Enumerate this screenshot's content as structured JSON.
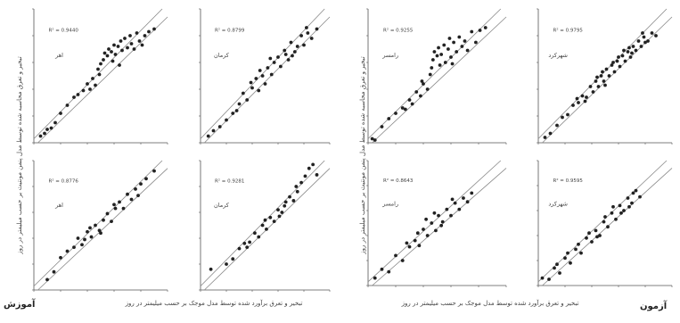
{
  "labels": {
    "train_section": "آموزش",
    "test_section": "آزمون",
    "xlabel": "تبخیر و تعرق برآورد شده توسط مدل موجک بر حسب میلیمتر در روز",
    "ylabel": "تبخیر و تعرق محاسبه شده توسط مدل پنمن مونتیث بر حسب میلیمتر در روز"
  },
  "style": {
    "point_color": "#222222",
    "line_color": "#888888",
    "axis_color": "#555555"
  },
  "chart_data": [
    {
      "type": "scatter",
      "section": "train",
      "station": "اهر",
      "r2": "R² = 0.9440",
      "xlim": [
        0,
        10
      ],
      "ylim": [
        0,
        10
      ],
      "grid": false,
      "points": [
        [
          0.5,
          0.5
        ],
        [
          0.8,
          0.7
        ],
        [
          1.0,
          1.0
        ],
        [
          1.3,
          1.1
        ],
        [
          1.6,
          1.5
        ],
        [
          2.0,
          2.2
        ],
        [
          2.5,
          2.8
        ],
        [
          3.0,
          3.4
        ],
        [
          3.3,
          3.6
        ],
        [
          3.7,
          3.9
        ],
        [
          4.0,
          4.4
        ],
        [
          4.2,
          4.0
        ],
        [
          4.4,
          4.8
        ],
        [
          4.6,
          4.3
        ],
        [
          4.8,
          5.5
        ],
        [
          5.0,
          5.9
        ],
        [
          5.2,
          6.2
        ],
        [
          5.3,
          6.7
        ],
        [
          5.5,
          6.5
        ],
        [
          5.6,
          7.0
        ],
        [
          5.8,
          6.8
        ],
        [
          6.0,
          7.3
        ],
        [
          6.1,
          6.6
        ],
        [
          6.3,
          7.2
        ],
        [
          6.5,
          7.6
        ],
        [
          6.6,
          6.9
        ],
        [
          6.8,
          7.8
        ],
        [
          7.0,
          7.1
        ],
        [
          7.2,
          8.0
        ],
        [
          7.3,
          7.4
        ],
        [
          7.5,
          7.0
        ],
        [
          7.7,
          8.2
        ],
        [
          7.9,
          7.6
        ],
        [
          8.1,
          7.3
        ],
        [
          8.3,
          8.0
        ],
        [
          8.6,
          8.3
        ],
        [
          9.0,
          8.5
        ],
        [
          6.4,
          5.8
        ],
        [
          5.9,
          6.1
        ],
        [
          4.9,
          5.1
        ]
      ]
    },
    {
      "type": "scatter",
      "section": "train",
      "station": "کرمان",
      "r2": "R² = 0.8799",
      "xlim": [
        0,
        10
      ],
      "ylim": [
        0,
        10
      ],
      "grid": false,
      "points": [
        [
          0.6,
          0.5
        ],
        [
          1.0,
          0.9
        ],
        [
          1.5,
          1.2
        ],
        [
          2.0,
          1.7
        ],
        [
          2.5,
          2.2
        ],
        [
          3.0,
          2.9
        ],
        [
          3.3,
          3.7
        ],
        [
          3.6,
          3.2
        ],
        [
          4.0,
          4.1
        ],
        [
          4.3,
          4.8
        ],
        [
          4.5,
          3.9
        ],
        [
          4.8,
          5.0
        ],
        [
          5.0,
          4.4
        ],
        [
          5.2,
          5.6
        ],
        [
          5.5,
          5.1
        ],
        [
          5.7,
          6.0
        ],
        [
          6.0,
          6.4
        ],
        [
          6.2,
          5.7
        ],
        [
          6.5,
          6.9
        ],
        [
          6.8,
          6.2
        ],
        [
          7.0,
          7.5
        ],
        [
          7.3,
          6.8
        ],
        [
          7.5,
          7.2
        ],
        [
          7.8,
          8.0
        ],
        [
          8.0,
          7.3
        ],
        [
          8.3,
          8.2
        ],
        [
          8.6,
          7.8
        ],
        [
          9.0,
          8.5
        ],
        [
          3.9,
          4.5
        ],
        [
          4.6,
          5.4
        ],
        [
          5.4,
          6.3
        ],
        [
          6.6,
          6.6
        ],
        [
          7.1,
          6.5
        ],
        [
          8.2,
          8.6
        ],
        [
          2.8,
          2.4
        ]
      ]
    },
    {
      "type": "scatter",
      "section": "train",
      "station": "رامسر",
      "r2": "R² = 0.9255",
      "xlim": [
        0,
        10
      ],
      "ylim": [
        0,
        10
      ],
      "grid": false,
      "points": [
        [
          0.3,
          0.3
        ],
        [
          0.5,
          0.2
        ],
        [
          1.5,
          1.8
        ],
        [
          2.0,
          2.2
        ],
        [
          2.5,
          2.6
        ],
        [
          3.0,
          3.2
        ],
        [
          3.2,
          2.9
        ],
        [
          3.5,
          3.8
        ],
        [
          3.8,
          3.5
        ],
        [
          4.0,
          4.4
        ],
        [
          4.3,
          4.0
        ],
        [
          4.5,
          5.1
        ],
        [
          4.7,
          6.2
        ],
        [
          4.8,
          6.8
        ],
        [
          5.0,
          6.5
        ],
        [
          5.1,
          7.1
        ],
        [
          5.3,
          6.6
        ],
        [
          5.5,
          7.3
        ],
        [
          5.6,
          6.0
        ],
        [
          5.8,
          7.0
        ],
        [
          6.0,
          6.4
        ],
        [
          6.2,
          7.5
        ],
        [
          6.4,
          6.8
        ],
        [
          6.6,
          7.9
        ],
        [
          6.8,
          7.2
        ],
        [
          7.0,
          7.6
        ],
        [
          7.2,
          6.9
        ],
        [
          7.5,
          8.3
        ],
        [
          7.8,
          7.5
        ],
        [
          8.1,
          8.4
        ],
        [
          8.5,
          8.6
        ],
        [
          5.2,
          5.8
        ],
        [
          4.6,
          5.6
        ],
        [
          6.1,
          5.9
        ],
        [
          5.9,
          7.8
        ],
        [
          3.9,
          4.6
        ],
        [
          2.7,
          2.5
        ],
        [
          1.0,
          1.2
        ]
      ]
    },
    {
      "type": "scatter",
      "section": "train",
      "station": "شهرکرد",
      "r2": "R² = 0.9795",
      "xlim": [
        0,
        10
      ],
      "ylim": [
        0,
        10
      ],
      "grid": false,
      "points": [
        [
          0.5,
          0.4
        ],
        [
          0.9,
          0.7
        ],
        [
          1.4,
          1.3
        ],
        [
          1.8,
          1.9
        ],
        [
          2.2,
          2.1
        ],
        [
          2.6,
          2.8
        ],
        [
          3.0,
          3.0
        ],
        [
          3.3,
          3.5
        ],
        [
          3.6,
          3.4
        ],
        [
          3.9,
          4.2
        ],
        [
          4.1,
          3.8
        ],
        [
          4.3,
          4.6
        ],
        [
          4.5,
          4.2
        ],
        [
          4.7,
          5.0
        ],
        [
          4.9,
          4.6
        ],
        [
          5.1,
          5.5
        ],
        [
          5.3,
          5.0
        ],
        [
          5.5,
          5.8
        ],
        [
          5.7,
          5.3
        ],
        [
          5.9,
          6.1
        ],
        [
          6.1,
          5.7
        ],
        [
          6.3,
          6.5
        ],
        [
          6.5,
          6.1
        ],
        [
          6.7,
          6.8
        ],
        [
          6.9,
          6.4
        ],
        [
          7.1,
          7.2
        ],
        [
          7.3,
          6.9
        ],
        [
          7.5,
          7.6
        ],
        [
          7.7,
          7.2
        ],
        [
          7.9,
          7.9
        ],
        [
          8.2,
          7.6
        ],
        [
          8.5,
          8.2
        ],
        [
          8.8,
          8.0
        ],
        [
          4.8,
          5.3
        ],
        [
          5.6,
          6.0
        ],
        [
          6.4,
          6.9
        ],
        [
          3.5,
          3.1
        ],
        [
          5.0,
          4.3
        ],
        [
          6.0,
          6.4
        ],
        [
          7.0,
          6.7
        ],
        [
          7.8,
          8.2
        ],
        [
          2.9,
          3.3
        ],
        [
          4.4,
          4.9
        ],
        [
          6.8,
          7.1
        ],
        [
          8.0,
          7.5
        ]
      ]
    },
    {
      "type": "scatter",
      "section": "test",
      "station": "اهر",
      "r2": "R² = 0.8776",
      "xlim": [
        0,
        10
      ],
      "ylim": [
        0,
        10
      ],
      "grid": false,
      "points": [
        [
          1.0,
          0.8
        ],
        [
          1.5,
          1.4
        ],
        [
          2.0,
          2.5
        ],
        [
          2.5,
          3.0
        ],
        [
          3.0,
          3.3
        ],
        [
          3.3,
          4.0
        ],
        [
          3.6,
          3.5
        ],
        [
          4.0,
          4.5
        ],
        [
          4.3,
          4.1
        ],
        [
          4.6,
          5.0
        ],
        [
          4.9,
          4.6
        ],
        [
          5.2,
          5.4
        ],
        [
          5.5,
          5.9
        ],
        [
          5.8,
          5.3
        ],
        [
          6.1,
          6.3
        ],
        [
          6.4,
          6.8
        ],
        [
          6.7,
          6.3
        ],
        [
          7.0,
          7.4
        ],
        [
          7.3,
          7.0
        ],
        [
          7.6,
          7.8
        ],
        [
          8.0,
          8.2
        ],
        [
          8.4,
          8.6
        ],
        [
          9.0,
          9.2
        ],
        [
          4.2,
          4.8
        ],
        [
          5.0,
          4.4
        ],
        [
          6.0,
          6.6
        ],
        [
          3.8,
          3.9
        ],
        [
          7.8,
          7.3
        ]
      ]
    },
    {
      "type": "scatter",
      "section": "test",
      "station": "کرمان",
      "r2": "R² = 0.9281",
      "xlim": [
        0,
        10
      ],
      "ylim": [
        0,
        10
      ],
      "grid": false,
      "points": [
        [
          0.8,
          1.6
        ],
        [
          2.0,
          2.0
        ],
        [
          2.5,
          2.4
        ],
        [
          3.0,
          3.2
        ],
        [
          3.4,
          3.6
        ],
        [
          3.8,
          3.7
        ],
        [
          4.2,
          4.4
        ],
        [
          4.5,
          4.1
        ],
        [
          4.8,
          5.0
        ],
        [
          5.1,
          4.7
        ],
        [
          5.4,
          5.6
        ],
        [
          5.7,
          5.3
        ],
        [
          6.0,
          6.2
        ],
        [
          6.3,
          6.0
        ],
        [
          6.6,
          6.8
        ],
        [
          6.9,
          7.2
        ],
        [
          7.2,
          6.9
        ],
        [
          7.5,
          7.6
        ],
        [
          7.8,
          8.3
        ],
        [
          8.1,
          8.8
        ],
        [
          8.4,
          9.4
        ],
        [
          8.7,
          9.7
        ],
        [
          9.0,
          8.9
        ],
        [
          5.0,
          5.4
        ],
        [
          6.5,
          6.5
        ],
        [
          7.4,
          8.0
        ],
        [
          3.6,
          3.3
        ],
        [
          6.1,
          5.7
        ]
      ]
    },
    {
      "type": "scatter",
      "section": "test",
      "station": "رامسر",
      "r2": "R² = 0.8643",
      "xlim": [
        0,
        10
      ],
      "ylim": [
        0,
        10
      ],
      "grid": false,
      "points": [
        [
          0.5,
          0.6
        ],
        [
          1.0,
          1.3
        ],
        [
          1.5,
          1.1
        ],
        [
          2.0,
          2.4
        ],
        [
          2.5,
          2.0
        ],
        [
          3.0,
          3.1
        ],
        [
          3.4,
          3.6
        ],
        [
          3.7,
          3.2
        ],
        [
          4.0,
          4.5
        ],
        [
          4.3,
          4.0
        ],
        [
          4.6,
          5.0
        ],
        [
          4.9,
          4.4
        ],
        [
          5.1,
          5.6
        ],
        [
          5.4,
          5.1
        ],
        [
          5.7,
          6.1
        ],
        [
          6.0,
          5.6
        ],
        [
          6.3,
          6.6
        ],
        [
          6.6,
          6.1
        ],
        [
          6.9,
          7.0
        ],
        [
          7.2,
          6.7
        ],
        [
          7.5,
          7.4
        ],
        [
          4.2,
          5.3
        ],
        [
          4.8,
          5.8
        ],
        [
          5.3,
          4.8
        ],
        [
          3.6,
          4.2
        ],
        [
          2.8,
          3.4
        ],
        [
          6.1,
          6.9
        ]
      ]
    },
    {
      "type": "scatter",
      "section": "test",
      "station": "شهرکرد",
      "r2": "R² = 0.9595",
      "xlim": [
        0,
        10
      ],
      "ylim": [
        0,
        10
      ],
      "grid": false,
      "points": [
        [
          0.3,
          0.6
        ],
        [
          0.8,
          0.5
        ],
        [
          1.2,
          1.4
        ],
        [
          1.6,
          1.0
        ],
        [
          2.0,
          2.2
        ],
        [
          2.4,
          1.8
        ],
        [
          2.8,
          2.9
        ],
        [
          3.2,
          2.6
        ],
        [
          3.6,
          3.8
        ],
        [
          4.0,
          3.5
        ],
        [
          4.3,
          4.4
        ],
        [
          4.6,
          4.0
        ],
        [
          4.9,
          5.1
        ],
        [
          5.2,
          4.7
        ],
        [
          5.5,
          5.8
        ],
        [
          5.8,
          5.3
        ],
        [
          6.1,
          6.4
        ],
        [
          6.4,
          6.0
        ],
        [
          6.7,
          7.0
        ],
        [
          7.0,
          6.6
        ],
        [
          7.3,
          7.6
        ],
        [
          7.6,
          7.1
        ],
        [
          4.4,
          3.9
        ],
        [
          3.0,
          3.3
        ],
        [
          5.0,
          5.5
        ],
        [
          6.2,
          5.8
        ],
        [
          2.2,
          2.6
        ],
        [
          7.1,
          7.4
        ],
        [
          5.6,
          6.3
        ],
        [
          3.8,
          4.2
        ],
        [
          1.4,
          1.7
        ],
        [
          6.8,
          6.3
        ]
      ]
    }
  ]
}
